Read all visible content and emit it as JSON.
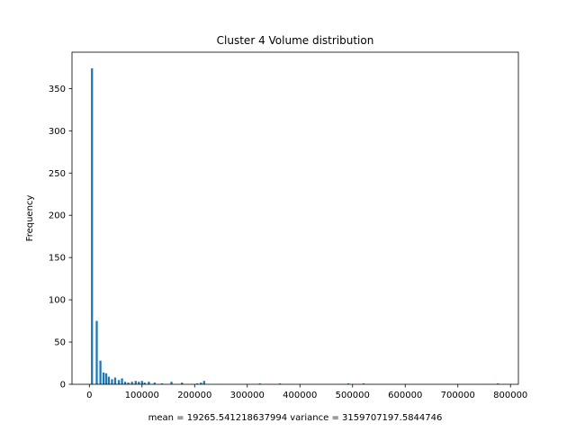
{
  "chart_data": {
    "type": "bar",
    "title": "Cluster 4 Volume distribution",
    "xlabel": "mean = 19265.541218637994    variance = 3159707197.5844746",
    "ylabel": "Frequency",
    "xlim": [
      -33000,
      815000
    ],
    "ylim": [
      0,
      393
    ],
    "xticks": [
      0,
      100000,
      200000,
      300000,
      400000,
      500000,
      600000,
      700000,
      800000
    ],
    "yticks": [
      0,
      50,
      100,
      150,
      200,
      250,
      300,
      350
    ],
    "bar_width": 3900,
    "bar_color": "#1f77b4",
    "grid": false,
    "x": [
      5000,
      14000,
      21000,
      27000,
      32000,
      37000,
      43000,
      49000,
      56000,
      62000,
      68000,
      74000,
      81000,
      88000,
      94000,
      100000,
      105000,
      113000,
      124000,
      138000,
      156000,
      176000,
      205000,
      212000,
      218000,
      324000,
      362000,
      492000,
      521000,
      776000
    ],
    "values": [
      374,
      75,
      28,
      14,
      13,
      9,
      6,
      8,
      5,
      7,
      3,
      2,
      3,
      4,
      3,
      4,
      2,
      3,
      2,
      1,
      3,
      2,
      1,
      2,
      4,
      1,
      1,
      1,
      1,
      1
    ]
  }
}
